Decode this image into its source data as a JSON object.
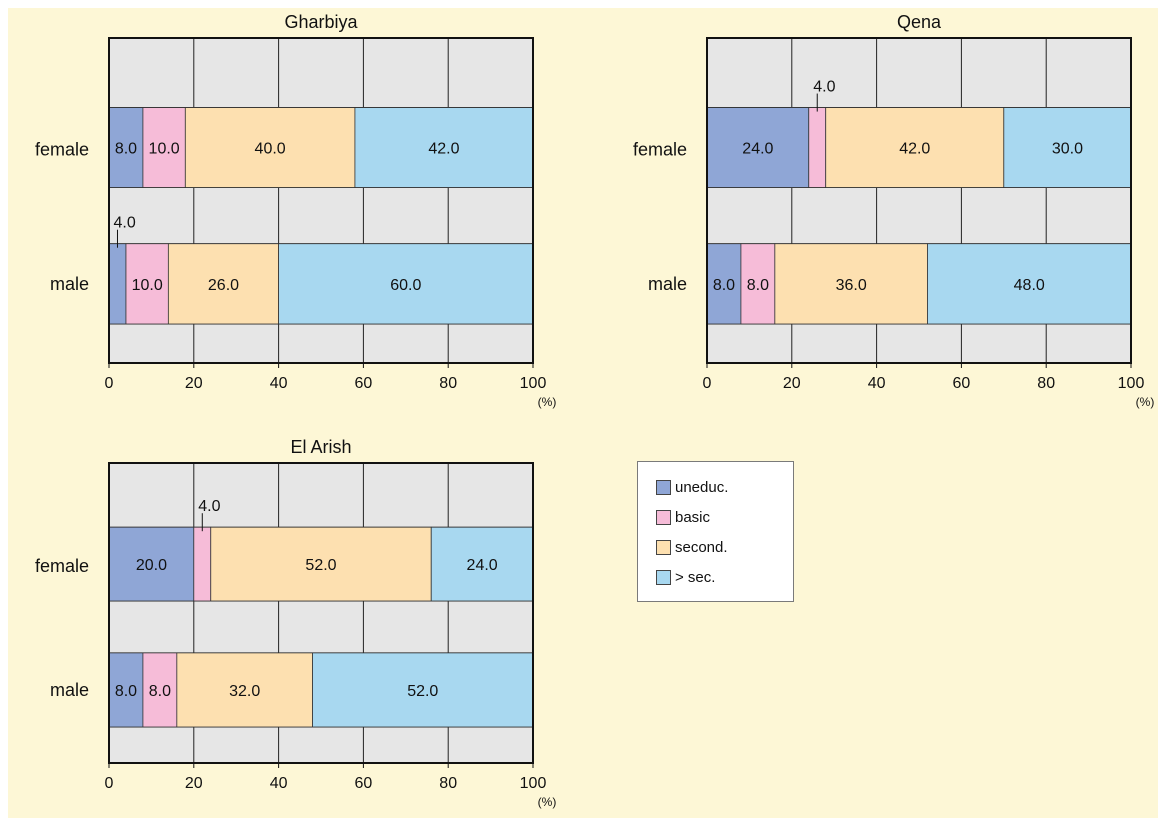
{
  "chart_data": [
    {
      "type": "bar",
      "orientation": "horizontal",
      "stacked": true,
      "title": "Gharbiya",
      "categories": [
        "female",
        "male"
      ],
      "series": [
        {
          "name": "uneduc.",
          "values": [
            8.0,
            4.0
          ]
        },
        {
          "name": "basic",
          "values": [
            10.0,
            10.0
          ]
        },
        {
          "name": "second.",
          "values": [
            40.0,
            26.0
          ]
        },
        {
          "name": "> sec.",
          "values": [
            42.0,
            60.0
          ]
        }
      ],
      "xlim": [
        0,
        100
      ],
      "xticks": [
        "0",
        "20",
        "40",
        "60",
        "80",
        "100"
      ],
      "unit": "(%)",
      "grid": true
    },
    {
      "type": "bar",
      "orientation": "horizontal",
      "stacked": true,
      "title": "Qena",
      "categories": [
        "female",
        "male"
      ],
      "series": [
        {
          "name": "uneduc.",
          "values": [
            24.0,
            8.0
          ]
        },
        {
          "name": "basic",
          "values": [
            4.0,
            8.0
          ]
        },
        {
          "name": "second.",
          "values": [
            42.0,
            36.0
          ]
        },
        {
          "name": "> sec.",
          "values": [
            30.0,
            48.0
          ]
        }
      ],
      "xlim": [
        0,
        100
      ],
      "xticks": [
        "0",
        "20",
        "40",
        "60",
        "80",
        "100"
      ],
      "unit": "(%)",
      "grid": true
    },
    {
      "type": "bar",
      "orientation": "horizontal",
      "stacked": true,
      "title": "El Arish",
      "categories": [
        "female",
        "male"
      ],
      "series": [
        {
          "name": "uneduc.",
          "values": [
            20.0,
            8.0
          ]
        },
        {
          "name": "basic",
          "values": [
            4.0,
            8.0
          ]
        },
        {
          "name": "second.",
          "values": [
            52.0,
            32.0
          ]
        },
        {
          "name": "> sec.",
          "values": [
            24.0,
            52.0
          ]
        }
      ],
      "xlim": [
        0,
        100
      ],
      "xticks": [
        "0",
        "20",
        "40",
        "60",
        "80",
        "100"
      ],
      "unit": "(%)",
      "grid": true
    }
  ],
  "legend": {
    "items": [
      {
        "label": "uneduc.",
        "color": "#8fa6d6"
      },
      {
        "label": "basic",
        "color": "#f6bcd8"
      },
      {
        "label": "second.",
        "color": "#fde0b0"
      },
      {
        "label": "> sec.",
        "color": "#a8d8f0"
      }
    ]
  },
  "colors": {
    "background": "#fdf7d6",
    "plot_background": "#e6e6e6",
    "segments": [
      "#8fa6d6",
      "#f6bcd8",
      "#fde0b0",
      "#a8d8f0"
    ]
  }
}
